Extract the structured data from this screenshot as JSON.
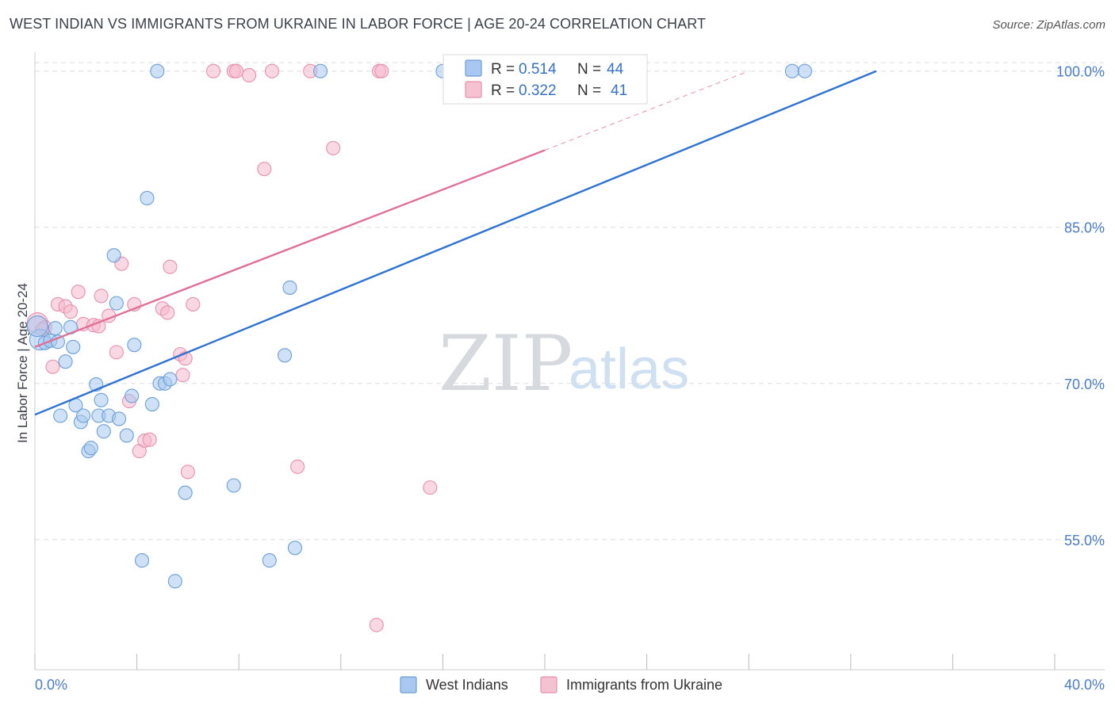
{
  "title": "WEST INDIAN VS IMMIGRANTS FROM UKRAINE IN LABOR FORCE | AGE 20-24 CORRELATION CHART",
  "source": "Source: ZipAtlas.com",
  "watermark": {
    "zip": "ZIP",
    "atlas": "atlas"
  },
  "colors": {
    "blue_fill": "#a8c8f0",
    "blue_stroke": "#6a9fd8",
    "blue_line": "#2f72d0",
    "pink_fill": "#f5b8cc",
    "pink_stroke": "#e890ab",
    "pink_line": "#e07098",
    "tick_text": "#4a7cc9",
    "grid": "#dddddd"
  },
  "legend": {
    "rows": [
      {
        "r_label": "R =",
        "r_value": "0.514",
        "n_label": "N =",
        "n_value": "44"
      },
      {
        "r_label": "R =",
        "r_value": "0.322",
        "n_label": "N =",
        "n_value": "41"
      }
    ]
  },
  "chart_data": {
    "type": "scatter",
    "title": "WEST INDIAN VS IMMIGRANTS FROM UKRAINE IN LABOR FORCE | AGE 20-24 CORRELATION CHART",
    "xlabel": "",
    "ylabel": "In Labor Force | Age 20-24",
    "xlim": [
      0,
      40
    ],
    "ylim": [
      42.5,
      101.5
    ],
    "x_tick_labels": [
      "0.0%",
      "40.0%"
    ],
    "y_ticks": [
      55,
      70,
      85,
      100
    ],
    "y_tick_labels": [
      "55.0%",
      "70.0%",
      "85.0%",
      "100.0%"
    ],
    "grid": true,
    "series": [
      {
        "name": "West Indians",
        "trend": {
          "x0": 0,
          "y0": 67.0,
          "x1": 33,
          "y1": 100.0
        },
        "points": [
          [
            0.2,
            74.2
          ],
          [
            0.4,
            73.9
          ],
          [
            0.6,
            74.1
          ],
          [
            0.8,
            75.3
          ],
          [
            0.9,
            74.0
          ],
          [
            1.0,
            66.9
          ],
          [
            1.2,
            72.1
          ],
          [
            1.4,
            75.4
          ],
          [
            1.5,
            73.5
          ],
          [
            1.6,
            67.9
          ],
          [
            1.8,
            66.3
          ],
          [
            1.9,
            66.9
          ],
          [
            2.1,
            63.5
          ],
          [
            2.2,
            63.8
          ],
          [
            2.4,
            69.9
          ],
          [
            2.5,
            66.9
          ],
          [
            2.6,
            68.4
          ],
          [
            2.7,
            65.4
          ],
          [
            2.9,
            66.9
          ],
          [
            3.1,
            82.3
          ],
          [
            3.2,
            77.7
          ],
          [
            3.3,
            66.6
          ],
          [
            3.6,
            65.0
          ],
          [
            3.8,
            68.8
          ],
          [
            3.9,
            73.7
          ],
          [
            4.2,
            53.0
          ],
          [
            4.4,
            87.8
          ],
          [
            4.6,
            68.0
          ],
          [
            4.8,
            100.0
          ],
          [
            4.9,
            70.0
          ],
          [
            5.1,
            70.0
          ],
          [
            5.3,
            70.4
          ],
          [
            5.5,
            51.0
          ],
          [
            5.9,
            59.5
          ],
          [
            7.8,
            60.2
          ],
          [
            9.2,
            53.0
          ],
          [
            9.8,
            72.7
          ],
          [
            10.0,
            79.2
          ],
          [
            10.2,
            54.2
          ],
          [
            11.2,
            100.0
          ],
          [
            16.0,
            100.0
          ],
          [
            29.7,
            100.0
          ],
          [
            30.2,
            100.0
          ],
          [
            0.1,
            75.5
          ]
        ]
      },
      {
        "name": "Immigrants from Ukraine",
        "trend": {
          "x0": 0,
          "y0": 73.5,
          "x1": 20,
          "y1": 92.4
        },
        "trend_extension": {
          "x0": 20,
          "y0": 92.4,
          "x1": 28,
          "y1": 100.0
        },
        "points": [
          [
            0.1,
            75.8
          ],
          [
            0.4,
            75.4
          ],
          [
            0.7,
            71.6
          ],
          [
            0.9,
            77.6
          ],
          [
            1.2,
            77.4
          ],
          [
            1.4,
            76.9
          ],
          [
            1.7,
            78.8
          ],
          [
            1.9,
            75.7
          ],
          [
            2.3,
            75.6
          ],
          [
            2.5,
            75.5
          ],
          [
            2.6,
            78.4
          ],
          [
            2.9,
            76.5
          ],
          [
            3.2,
            73.0
          ],
          [
            3.4,
            81.5
          ],
          [
            3.7,
            68.3
          ],
          [
            3.9,
            77.6
          ],
          [
            4.1,
            63.5
          ],
          [
            4.3,
            64.5
          ],
          [
            4.5,
            64.6
          ],
          [
            5.0,
            77.2
          ],
          [
            5.2,
            76.8
          ],
          [
            5.3,
            81.2
          ],
          [
            5.7,
            72.8
          ],
          [
            5.8,
            70.8
          ],
          [
            5.9,
            72.4
          ],
          [
            6.0,
            61.5
          ],
          [
            6.2,
            77.6
          ],
          [
            7.0,
            100.0
          ],
          [
            7.8,
            100.0
          ],
          [
            7.9,
            100.0
          ],
          [
            8.4,
            99.6
          ],
          [
            9.0,
            90.6
          ],
          [
            9.3,
            100.0
          ],
          [
            10.3,
            62.0
          ],
          [
            10.8,
            100.0
          ],
          [
            11.7,
            92.6
          ],
          [
            13.5,
            100.0
          ],
          [
            13.6,
            100.0
          ],
          [
            13.4,
            46.8
          ],
          [
            15.5,
            60.0
          ],
          [
            0.3,
            75.2
          ]
        ]
      }
    ]
  }
}
